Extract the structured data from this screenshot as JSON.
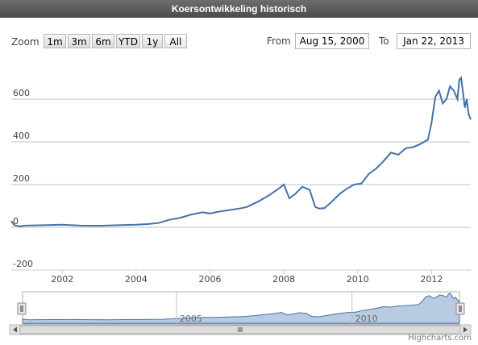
{
  "header": {
    "title": "Koersontwikkeling historisch"
  },
  "range_selector": {
    "zoom_label": "Zoom",
    "buttons": [
      "1m",
      "3m",
      "6m",
      "YTD",
      "1y",
      "All"
    ],
    "selected": "All",
    "from_label": "From",
    "from_value": "Aug 15, 2000",
    "to_label": "To",
    "to_value": "Jan 22, 2013"
  },
  "navigator": {
    "tick_labels": [
      "2005",
      "2010"
    ]
  },
  "credit": "Highcharts.com",
  "colors": {
    "line": "#4572a7",
    "nav_fill": "#b8cbe2",
    "nav_line": "#4572a7"
  },
  "chart_data": {
    "type": "line",
    "title": "Koersontwikkeling historisch",
    "xlabel": "",
    "ylabel": "",
    "xlim": [
      2000.62,
      2013.06
    ],
    "ylim": [
      -200,
      700
    ],
    "x_tick_labels": [
      "2002",
      "2004",
      "2006",
      "2008",
      "2010",
      "2012"
    ],
    "y_tick_labels": [
      "-200",
      "0",
      "200",
      "400",
      "600"
    ],
    "grid": true,
    "series": [
      {
        "x": [
          2000.62,
          2000.7,
          2000.85,
          2001.0,
          2001.5,
          2002.0,
          2002.5,
          2003.0,
          2003.5,
          2004.0,
          2004.3,
          2004.6,
          2004.9,
          2005.2,
          2005.5,
          2005.8,
          2006.0,
          2006.2,
          2006.5,
          2006.8,
          2007.0,
          2007.3,
          2007.6,
          2007.85,
          2008.0,
          2008.15,
          2008.3,
          2008.5,
          2008.7,
          2008.85,
          2008.95,
          2009.1,
          2009.3,
          2009.5,
          2009.7,
          2009.9,
          2010.1,
          2010.3,
          2010.5,
          2010.7,
          2010.9,
          2011.1,
          2011.3,
          2011.5,
          2011.7,
          2011.9,
          2012.0,
          2012.1,
          2012.2,
          2012.3,
          2012.4,
          2012.5,
          2012.6,
          2012.7,
          2012.75,
          2012.8,
          2012.9,
          2012.95,
          2013.0,
          2013.06
        ],
        "y": [
          30,
          10,
          5,
          8,
          10,
          12,
          8,
          7,
          10,
          12,
          15,
          20,
          35,
          45,
          60,
          70,
          65,
          72,
          80,
          88,
          95,
          120,
          150,
          180,
          200,
          135,
          155,
          190,
          175,
          95,
          88,
          90,
          120,
          155,
          180,
          200,
          205,
          250,
          275,
          310,
          350,
          340,
          370,
          375,
          390,
          410,
          490,
          610,
          640,
          580,
          600,
          660,
          640,
          600,
          690,
          700,
          560,
          600,
          530,
          505
        ]
      }
    ]
  }
}
